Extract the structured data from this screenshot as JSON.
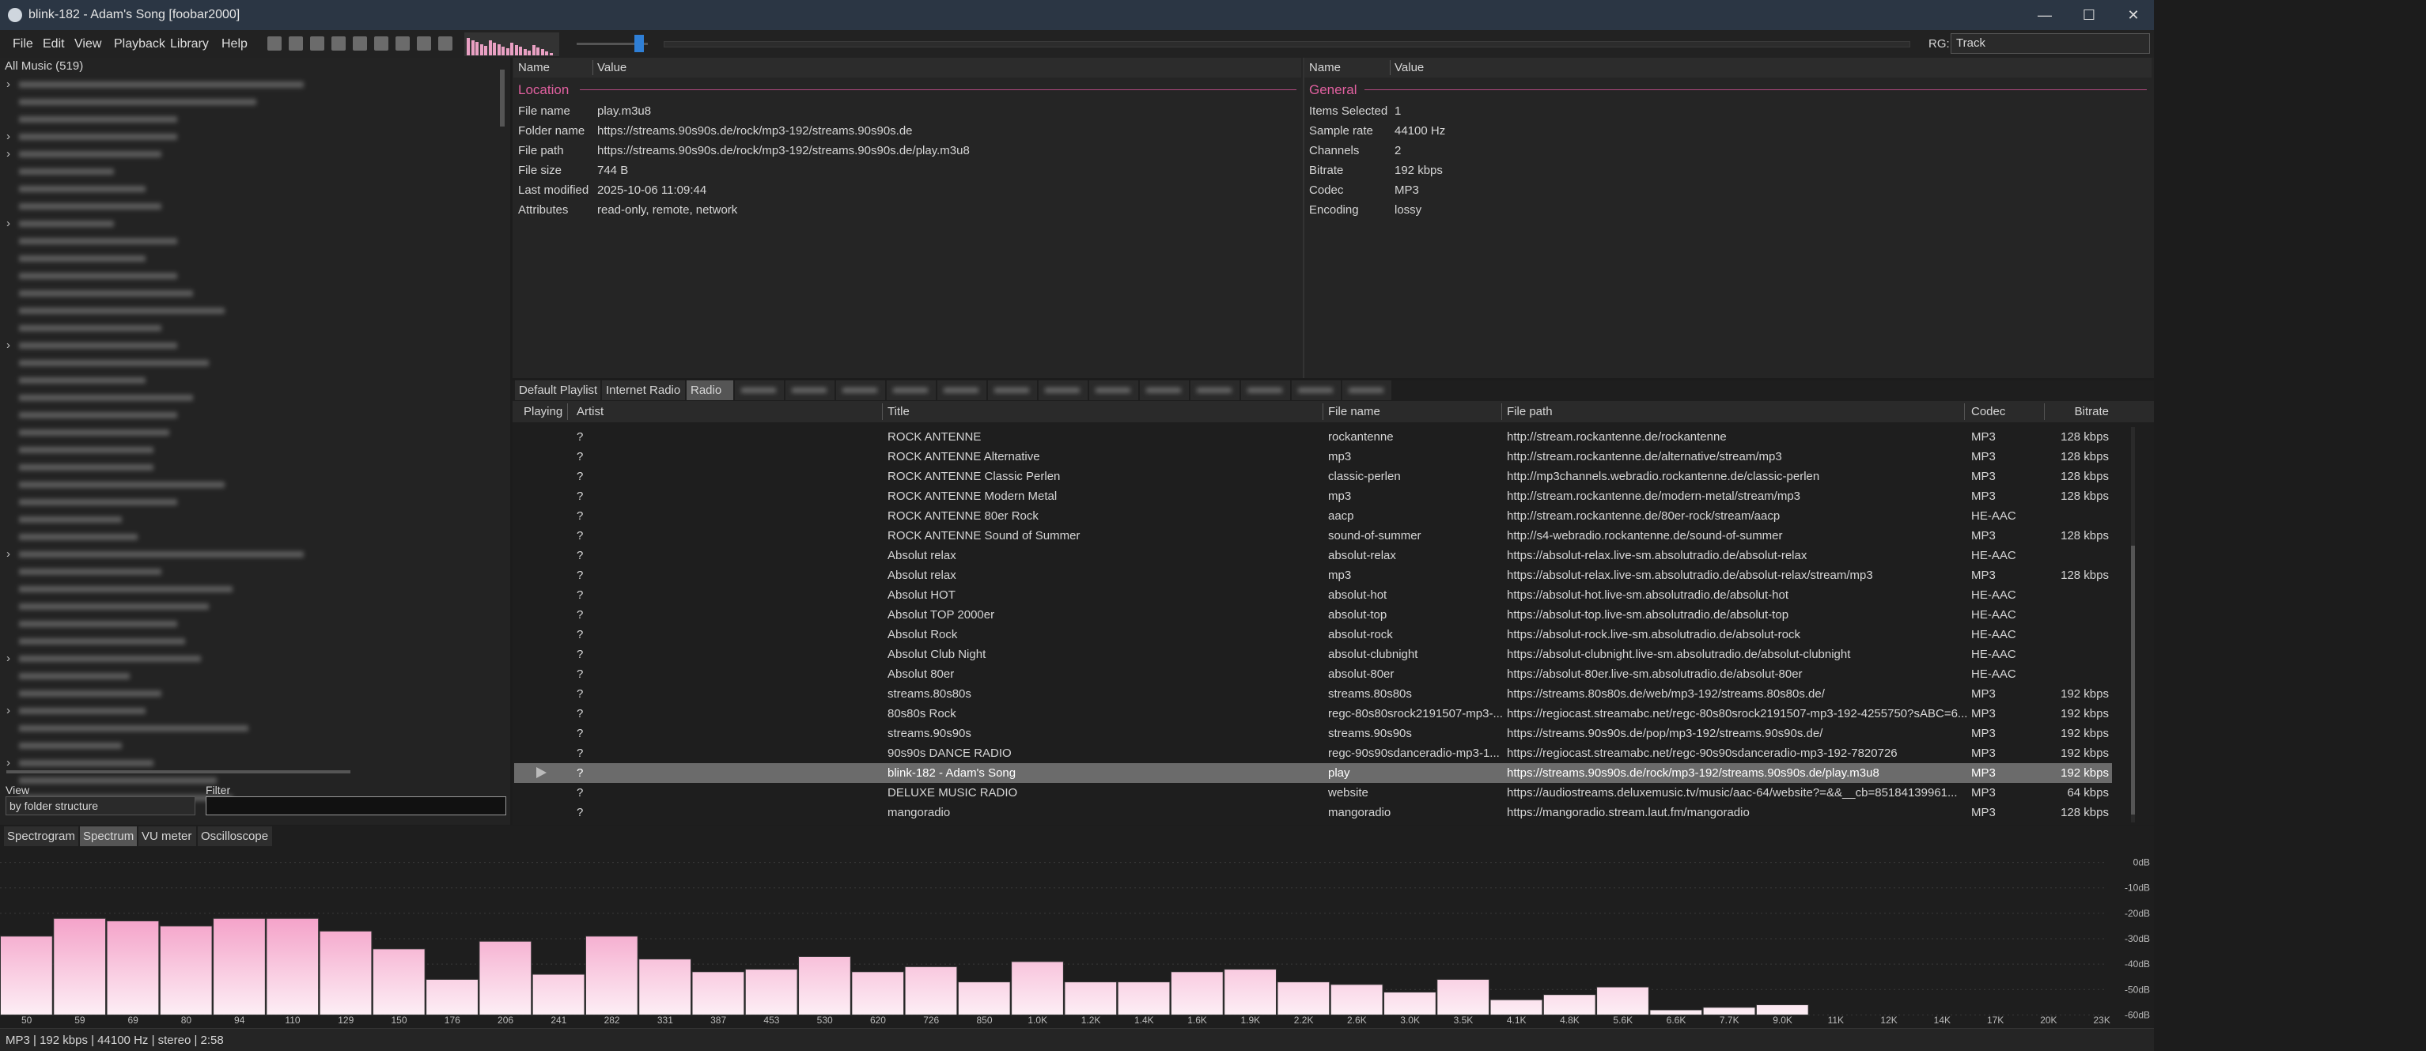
{
  "window": {
    "title": "blink-182 - Adam's Song  [foobar2000]"
  },
  "menu": [
    "File",
    "Edit",
    "View",
    "Playback",
    "Library",
    "Help"
  ],
  "toolbar": {
    "rg_label": "RG:",
    "rg_value": "Track"
  },
  "library": {
    "title": "All Music (519)",
    "view_label": "View",
    "view_value": "by folder structure",
    "filter_label": "Filter"
  },
  "properties": {
    "columns": [
      "Name",
      "Value"
    ],
    "left": {
      "section": "Location",
      "rows": [
        [
          "File name",
          "play.m3u8"
        ],
        [
          "Folder name",
          "https://streams.90s90s.de/rock/mp3-192/streams.90s90s.de"
        ],
        [
          "File path",
          "https://streams.90s90s.de/rock/mp3-192/streams.90s90s.de/play.m3u8"
        ],
        [
          "File size",
          "744 B"
        ],
        [
          "Last modified",
          "2025-10-06 11:09:44"
        ],
        [
          "Attributes",
          "read-only, remote, network"
        ]
      ]
    },
    "right": {
      "section": "General",
      "rows": [
        [
          "Items Selected",
          "1"
        ],
        [
          "Sample rate",
          "44100 Hz"
        ],
        [
          "Channels",
          "2"
        ],
        [
          "Bitrate",
          "192 kbps"
        ],
        [
          "Codec",
          "MP3"
        ],
        [
          "Encoding",
          "lossy"
        ]
      ]
    }
  },
  "playlist": {
    "tabs": [
      "Default Playlist",
      "Internet Radio",
      "Radio"
    ],
    "active_tab": 2,
    "columns": [
      "Playing",
      "Artist",
      "Title",
      "File name",
      "File path",
      "Codec",
      "Bitrate"
    ],
    "playing_row": 17,
    "rows": [
      [
        "?",
        "ROCK ANTENNE",
        "rockantenne",
        "http://stream.rockantenne.de/rockantenne",
        "MP3",
        "128 kbps"
      ],
      [
        "?",
        "ROCK ANTENNE Alternative",
        "mp3",
        "http://stream.rockantenne.de/alternative/stream/mp3",
        "MP3",
        "128 kbps"
      ],
      [
        "?",
        "ROCK ANTENNE Classic Perlen",
        "classic-perlen",
        "http://mp3channels.webradio.rockantenne.de/classic-perlen",
        "MP3",
        "128 kbps"
      ],
      [
        "?",
        "ROCK ANTENNE Modern Metal",
        "mp3",
        "http://stream.rockantenne.de/modern-metal/stream/mp3",
        "MP3",
        "128 kbps"
      ],
      [
        "?",
        "ROCK ANTENNE 80er Rock",
        "aacp",
        "http://stream.rockantenne.de/80er-rock/stream/aacp",
        "HE-AAC"
      ],
      [
        "?",
        "ROCK ANTENNE Sound of Summer",
        "sound-of-summer",
        "http://s4-webradio.rockantenne.de/sound-of-summer",
        "MP3",
        "128 kbps"
      ],
      [
        "?",
        "Absolut relax",
        "absolut-relax",
        "https://absolut-relax.live-sm.absolutradio.de/absolut-relax",
        "HE-AAC"
      ],
      [
        "?",
        "Absolut relax",
        "mp3",
        "https://absolut-relax.live-sm.absolutradio.de/absolut-relax/stream/mp3",
        "MP3",
        "128 kbps"
      ],
      [
        "?",
        "Absolut HOT",
        "absolut-hot",
        "https://absolut-hot.live-sm.absolutradio.de/absolut-hot",
        "HE-AAC"
      ],
      [
        "?",
        "Absolut TOP 2000er",
        "absolut-top",
        "https://absolut-top.live-sm.absolutradio.de/absolut-top",
        "HE-AAC"
      ],
      [
        "?",
        "Absolut Rock",
        "absolut-rock",
        "https://absolut-rock.live-sm.absolutradio.de/absolut-rock",
        "HE-AAC"
      ],
      [
        "?",
        "Absolut Club Night",
        "absolut-clubnight",
        "https://absolut-clubnight.live-sm.absolutradio.de/absolut-clubnight",
        "HE-AAC"
      ],
      [
        "?",
        "Absolut 80er",
        "absolut-80er",
        "https://absolut-80er.live-sm.absolutradio.de/absolut-80er",
        "HE-AAC"
      ],
      [
        "?",
        "streams.80s80s",
        "streams.80s80s",
        "https://streams.80s80s.de/web/mp3-192/streams.80s80s.de/",
        "MP3",
        "192 kbps"
      ],
      [
        "?",
        "80s80s Rock",
        "regc-80s80srock2191507-mp3-...",
        "https://regiocast.streamabc.net/regc-80s80srock2191507-mp3-192-4255750?sABC=6...",
        "MP3",
        "192 kbps"
      ],
      [
        "?",
        "streams.90s90s",
        "streams.90s90s",
        "https://streams.90s90s.de/pop/mp3-192/streams.90s90s.de/",
        "MP3",
        "192 kbps"
      ],
      [
        "?",
        "90s90s DANCE RADIO",
        "regc-90s90sdanceradio-mp3-1...",
        "https://regiocast.streamabc.net/regc-90s90sdanceradio-mp3-192-7820726",
        "MP3",
        "192 kbps"
      ],
      [
        "?",
        "blink-182 - Adam's Song",
        "play",
        "https://streams.90s90s.de/rock/mp3-192/streams.90s90s.de/play.m3u8",
        "MP3",
        "192 kbps"
      ],
      [
        "?",
        "DELUXE MUSIC RADIO",
        "website",
        "https://audiostreams.deluxemusic.tv/music/aac-64/website?=&&__cb=85184139961...",
        "MP3",
        "64 kbps"
      ],
      [
        "?",
        "mangoradio",
        "mangoradio",
        "https://mangoradio.stream.laut.fm/mangoradio",
        "MP3",
        "128 kbps"
      ]
    ]
  },
  "visualizer": {
    "tabs": [
      "Spectrogram",
      "Spectrum",
      "VU meter",
      "Oscilloscope"
    ],
    "active_tab": 1,
    "type": "bar",
    "categories": [
      "50",
      "59",
      "69",
      "80",
      "94",
      "110",
      "129",
      "150",
      "176",
      "206",
      "241",
      "282",
      "331",
      "387",
      "453",
      "530",
      "620",
      "726",
      "850",
      "1.0K",
      "1.2K",
      "1.4K",
      "1.6K",
      "1.9K",
      "2.2K",
      "2.6K",
      "3.0K",
      "3.5K",
      "4.1K",
      "4.8K",
      "5.6K",
      "6.6K",
      "7.7K",
      "9.0K",
      "11K",
      "12K",
      "14K",
      "17K",
      "20K",
      "23K"
    ],
    "values": [
      -29,
      -22,
      -23,
      -25,
      -22,
      -22,
      -27,
      -34,
      -46,
      -31,
      -44,
      -29,
      -38,
      -43,
      -42,
      -37,
      -43,
      -41,
      -47,
      -39,
      -47,
      -47,
      -43,
      -42,
      -47,
      -48,
      -51,
      -46,
      -54,
      -52,
      -49,
      -58,
      -57,
      -56,
      -60,
      -60,
      -60,
      -60,
      -60,
      -60
    ],
    "ylim": [
      -60,
      0
    ],
    "yticks": [
      {
        "value": 0,
        "label": "0dB"
      },
      {
        "value": -10,
        "label": "-10dB"
      },
      {
        "value": -20,
        "label": "-20dB"
      },
      {
        "value": -30,
        "label": "-30dB"
      },
      {
        "value": -40,
        "label": "-40dB"
      },
      {
        "value": -50,
        "label": "-50dB"
      },
      {
        "value": -60,
        "label": "-60dB"
      }
    ]
  },
  "status": "MP3 | 192 kbps | 44100 Hz | stereo | 2:58"
}
